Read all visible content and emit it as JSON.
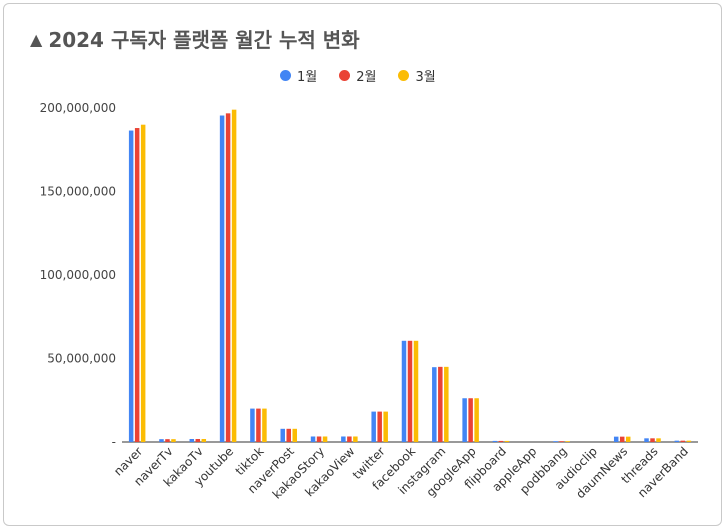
{
  "title_icon": "triangle-up-icon",
  "title": "2024 구독자 플랫폼 월간 누적 변화",
  "chart_data": {
    "type": "bar",
    "title": "2024 구독자 플랫폼 월간 누적 변화",
    "xlabel": "",
    "ylabel": "",
    "ylim": [
      0,
      200000000
    ],
    "yticks": [
      0,
      50000000,
      100000000,
      150000000,
      200000000
    ],
    "ytick_labels": [
      "-",
      "50,000,000",
      "100,000,000",
      "150,000,000",
      "200,000,000"
    ],
    "grid": false,
    "legend_position": "top",
    "categories": [
      "naver",
      "naverTv",
      "kakaoTv",
      "youtube",
      "tiktok",
      "naverPost",
      "kakaoStory",
      "kakaoView",
      "twitter",
      "facebook",
      "instagram",
      "googleApp",
      "flipboard",
      "appleApp",
      "podbbang",
      "audioclip",
      "daumNews",
      "threads",
      "naverBand"
    ],
    "series": [
      {
        "name": "1월",
        "color": "#4285f4",
        "values": [
          186500000,
          1700000,
          1800000,
          195500000,
          20000000,
          7900000,
          3300000,
          3300000,
          18200000,
          60600000,
          44800000,
          26200000,
          650000,
          0,
          500000,
          0,
          3200000,
          2200000,
          800000
        ]
      },
      {
        "name": "2월",
        "color": "#ea4335",
        "values": [
          188000000,
          1700000,
          1800000,
          196800000,
          20000000,
          7900000,
          3300000,
          3300000,
          18200000,
          60600000,
          45000000,
          26200000,
          650000,
          0,
          500000,
          0,
          3200000,
          2200000,
          800000
        ]
      },
      {
        "name": "3월",
        "color": "#fbbc04",
        "values": [
          190000000,
          1700000,
          1800000,
          199000000,
          20000000,
          7900000,
          3300000,
          3300000,
          18200000,
          60600000,
          45000000,
          26200000,
          650000,
          0,
          500000,
          0,
          3200000,
          2200000,
          800000
        ]
      }
    ]
  }
}
